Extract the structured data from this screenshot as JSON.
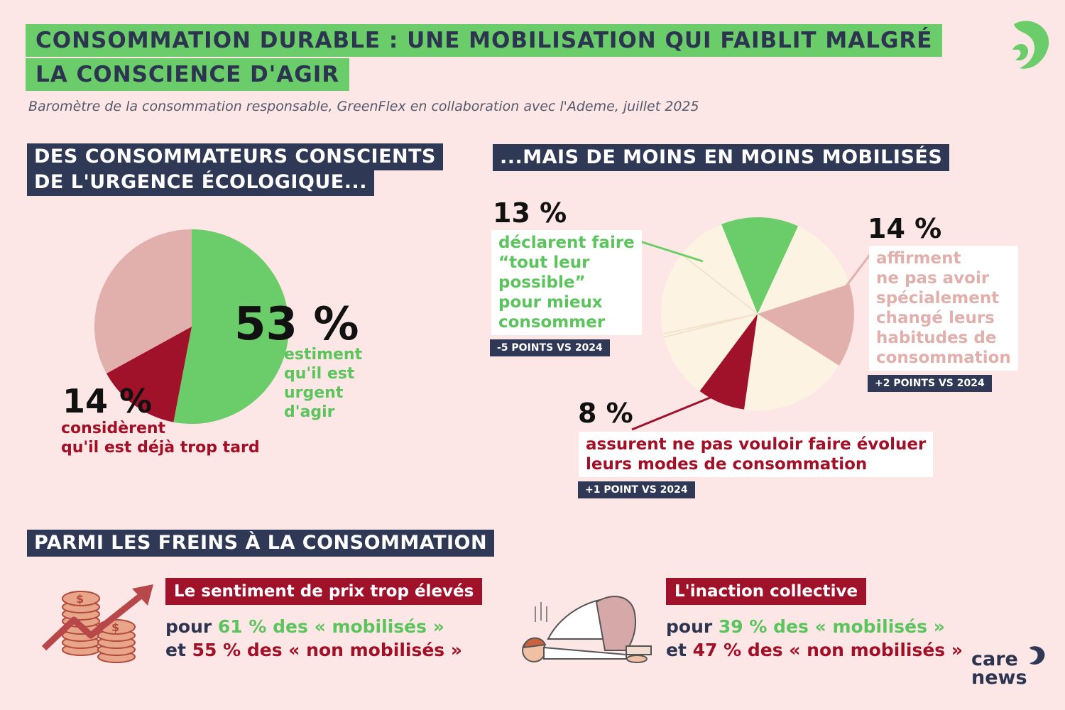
{
  "header": {
    "title_line1": "CONSOMMATION DURABLE : UNE MOBILISATION QUI FAIBLIT MALGRÉ",
    "title_line2": "LA CONSCIENCE D'AGIR",
    "subtitle": "Baromètre de la consommation responsable, GreenFlex en collaboration avec l'Ademe, juillet 2025"
  },
  "section1": {
    "heading_line1": "DES CONSOMMATEURS CONSCIENTS",
    "heading_line2": "DE L'URGENCE ÉCOLOGIQUE...",
    "green_value": "53 %",
    "green_lines": [
      "estiment",
      "qu'il est",
      "urgent",
      "d'agir"
    ],
    "red_value": "14 %",
    "red_lines": [
      "considèrent",
      "qu'il est déjà trop tard"
    ]
  },
  "section2": {
    "heading": "...MAIS DE MOINS EN MOINS MOBILISÉS",
    "green_value": "13 %",
    "green_lines": [
      "déclarent faire",
      "“tout leur",
      "possible”",
      "pour mieux",
      "consommer"
    ],
    "green_tag": "-5 POINTS VS 2024",
    "pink_value": "14 %",
    "pink_lines": [
      "affirment",
      "ne pas avoir",
      "spécialement",
      "changé leurs",
      "habitudes de",
      "consommation"
    ],
    "pink_tag": "+2 POINTS VS 2024",
    "red_value": "8 %",
    "red_lines": [
      "assurent ne pas vouloir faire évoluer",
      "leurs modes de consommation"
    ],
    "red_tag": "+1 POINT VS 2024"
  },
  "section3": {
    "heading": "PARMI LES FREINS À LA CONSOMMATION",
    "frein1": {
      "label": "Le sentiment de prix trop élevés",
      "l1_pre": "pour ",
      "l1_val": "61 % des « mobilisés »",
      "l2_pre": "et ",
      "l2_val": "55 % des « non mobilisés »"
    },
    "frein2": {
      "label": "L'inaction collective",
      "l1_pre": "pour ",
      "l1_val": "39 % des « mobilisés »",
      "l2_pre": "et ",
      "l2_val": "47 % des « non mobilisés »"
    }
  },
  "logo": {
    "line1": "care",
    "line2": "news"
  },
  "colors": {
    "green": "#6acd6a",
    "red": "#a0112a",
    "pink": "#e2b0ac",
    "cream": "#fdf3e3",
    "navy": "#2f3854",
    "background": "#fce6e6"
  },
  "icons": [
    "carenews-logo-icon",
    "coins-rising-arrow-icon",
    "curled-up-person-icon"
  ],
  "chart_data": [
    {
      "type": "pie",
      "labels": [
        "estiment qu'il est urgent d'agir",
        "considèrent qu'il est déjà trop tard",
        ""
      ],
      "values": [
        53,
        14,
        33
      ],
      "colors": [
        "#6acd6a",
        "#a0112a",
        "#e2b0ac"
      ]
    },
    {
      "type": "pie",
      "labels": [
        "déclarent faire “tout leur possible” pour mieux consommer",
        "affirment ne pas avoir spécialement changé leurs habitudes de consommation",
        "assurent ne pas vouloir faire évoluer leurs modes de consommation",
        ""
      ],
      "values": [
        13,
        14,
        8,
        65
      ],
      "colors": [
        "#6acd6a",
        "#e2b0ac",
        "#a0112a",
        "#fdf3e3"
      ]
    }
  ]
}
